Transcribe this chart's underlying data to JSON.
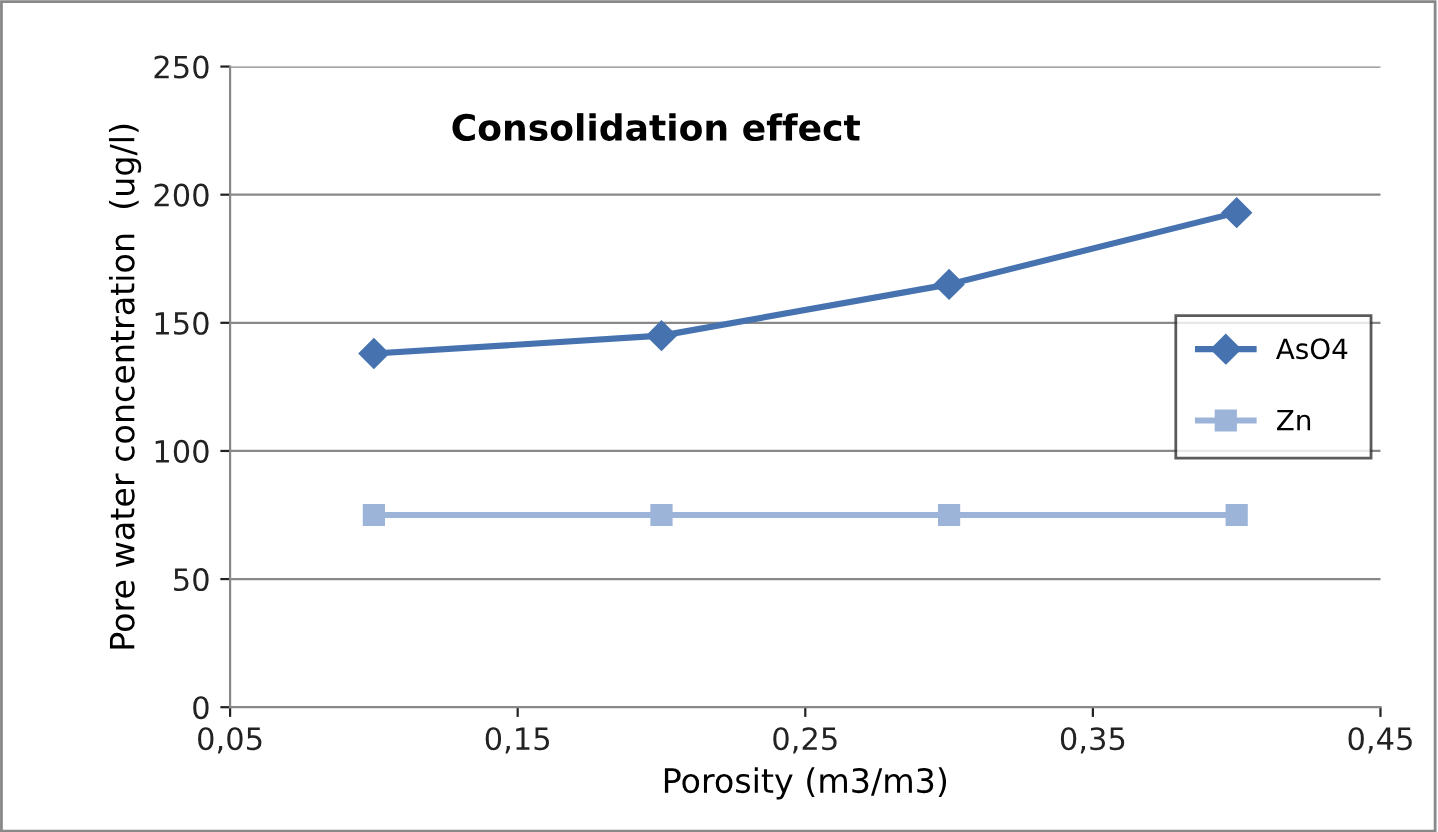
{
  "chart_data": {
    "type": "line",
    "title": "Consolidation effect",
    "xlabel": "Porosity (m3/m3)",
    "ylabel": "Pore water concentration  (ug/l)",
    "x": [
      0.1,
      0.2,
      0.3,
      0.4
    ],
    "series": [
      {
        "name": "AsO4",
        "color": "#4672b0",
        "marker": "diamond",
        "values": [
          138,
          145,
          165,
          193
        ]
      },
      {
        "name": "Zn",
        "color": "#9db4d9",
        "marker": "square",
        "values": [
          75,
          75,
          75,
          75
        ]
      }
    ],
    "xlim": [
      0.05,
      0.45
    ],
    "xticks": [
      {
        "value": 0.05,
        "label": "0,05"
      },
      {
        "value": 0.15,
        "label": "0,15"
      },
      {
        "value": 0.25,
        "label": "0,25"
      },
      {
        "value": 0.35,
        "label": "0,35"
      },
      {
        "value": 0.45,
        "label": "0,45"
      }
    ],
    "ylim": [
      0,
      250
    ],
    "yticks": [
      0,
      50,
      100,
      150,
      200,
      250
    ],
    "grid": "y",
    "legend": "right",
    "line_style": "solid"
  }
}
